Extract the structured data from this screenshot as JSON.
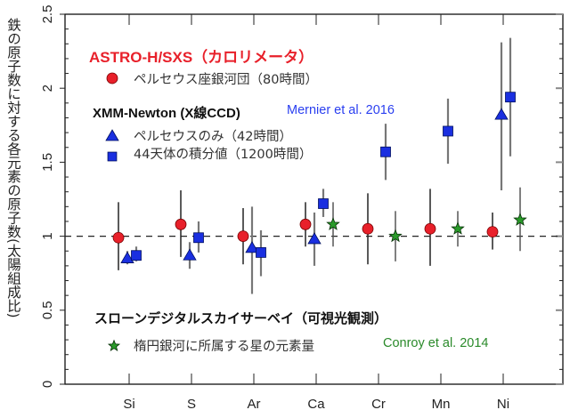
{
  "chart_data": {
    "type": "scatter",
    "ylabel": "鉄の原子数に対する各元素の原子数(太陽組成比)",
    "xlabel": "",
    "categories": [
      "Si",
      "S",
      "Ar",
      "Ca",
      "Cr",
      "Mn",
      "Ni"
    ],
    "ylim": [
      0,
      2.5
    ],
    "yticks": [
      "0",
      "0.5",
      "1",
      "1.5",
      "2",
      "2.5"
    ],
    "reference_line": {
      "y": 1,
      "style": "dashed"
    },
    "legend_groups": [
      {
        "title": "ASTRO-H/SXS（カロリメータ）",
        "title_color": "#e8202a",
        "reference": ""
      },
      {
        "title": "XMM-Newton (X線CCD)",
        "title_color": "#111111",
        "reference": "Mernier et al. 2016",
        "reference_color": "#2a3ff0"
      },
      {
        "title": "スローンデジタルスカイサーベイ（可視光観測）",
        "title_color": "#111111",
        "reference": "Conroy et al. 2014",
        "reference_color": "#2a8a2a"
      }
    ],
    "series": [
      {
        "name": "ペルセウス座銀河団（80時間）",
        "marker": "circle",
        "color": "#e8202a",
        "errcolor": "#222222",
        "values": [
          0.99,
          1.08,
          1.0,
          1.08,
          1.05,
          1.05,
          1.03
        ],
        "err_low": [
          0.77,
          0.86,
          0.81,
          0.93,
          0.81,
          0.8,
          0.91
        ],
        "err_high": [
          1.23,
          1.31,
          1.19,
          1.23,
          1.29,
          1.32,
          1.16
        ]
      },
      {
        "name": "ペルセウスのみ（42時間）",
        "marker": "triangle",
        "color": "#1a2fe0",
        "errcolor": "#777777",
        "values": [
          0.85,
          0.87,
          0.92,
          0.98,
          null,
          null,
          1.82
        ],
        "err_low": [
          0.81,
          0.78,
          0.61,
          0.8,
          null,
          null,
          1.31
        ],
        "err_high": [
          0.9,
          0.96,
          1.2,
          1.16,
          null,
          null,
          2.31
        ]
      },
      {
        "name": "44天体の積分値（1200時間）",
        "marker": "square",
        "color": "#1a2fe0",
        "errcolor": "#777777",
        "values": [
          0.87,
          0.99,
          0.89,
          1.22,
          1.57,
          1.71,
          1.94
        ],
        "err_low": [
          0.83,
          0.89,
          0.73,
          1.13,
          1.38,
          1.49,
          1.54
        ],
        "err_high": [
          0.93,
          1.1,
          1.04,
          1.32,
          1.76,
          1.93,
          2.34
        ]
      },
      {
        "name": "楕円銀河に所属する星の元素量",
        "marker": "star",
        "color": "#2a9a2a",
        "errcolor": "#555555",
        "values": [
          null,
          null,
          null,
          1.08,
          1.0,
          1.05,
          1.11
        ],
        "err_low": [
          null,
          null,
          null,
          0.93,
          0.83,
          0.93,
          0.9
        ],
        "err_high": [
          null,
          null,
          null,
          1.23,
          1.17,
          1.17,
          1.33
        ]
      }
    ]
  }
}
